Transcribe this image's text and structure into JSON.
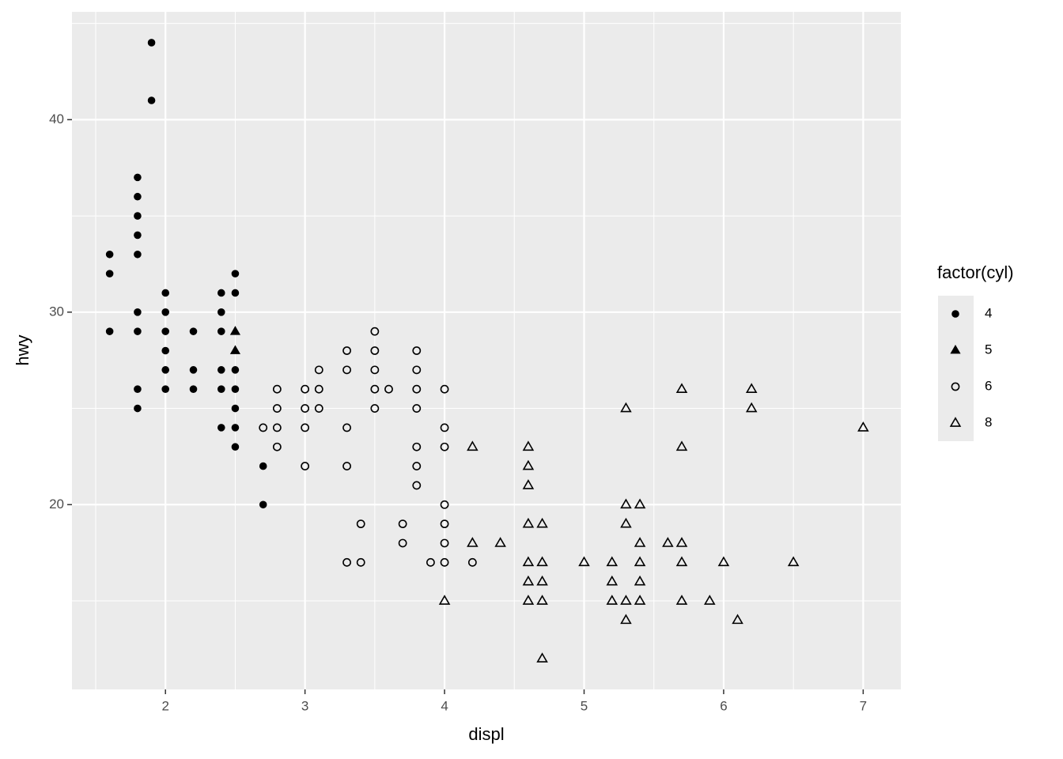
{
  "chart_data": {
    "type": "scatter",
    "x_label": "displ",
    "y_label": "hwy",
    "legend_title": "factor(cyl)",
    "legend_position": "right",
    "xlim": [
      1.33,
      7.27
    ],
    "ylim": [
      10.4,
      45.6
    ],
    "xticks": [
      2,
      3,
      4,
      5,
      6,
      7
    ],
    "yticks": [
      20,
      30,
      40
    ],
    "x_minor_breaks": [
      1.5,
      2.5,
      3.5,
      4.5,
      5.5,
      6.5
    ],
    "y_minor_breaks": [
      15,
      25,
      35,
      45
    ],
    "grid": true,
    "series": [
      {
        "name": "4",
        "color": "#000000",
        "shape": "circle-filled",
        "x": [
          1.6,
          1.6,
          1.6,
          1.8,
          1.8,
          1.8,
          1.8,
          1.8,
          1.8,
          1.8,
          1.8,
          1.8,
          1.9,
          1.9,
          2.0,
          2.0,
          2.0,
          2.0,
          2.0,
          2.0,
          2.2,
          2.2,
          2.2,
          2.4,
          2.4,
          2.4,
          2.4,
          2.4,
          2.4,
          2.5,
          2.5,
          2.5,
          2.5,
          2.5,
          2.5,
          2.5,
          2.7,
          2.7
        ],
        "y": [
          33,
          32,
          29,
          37,
          36,
          35,
          34,
          33,
          30,
          29,
          26,
          25,
          44,
          41,
          31,
          30,
          29,
          28,
          27,
          26,
          29,
          27,
          26,
          31,
          30,
          29,
          27,
          26,
          24,
          32,
          31,
          27,
          26,
          25,
          24,
          23,
          22,
          20
        ]
      },
      {
        "name": "5",
        "color": "#000000",
        "shape": "triangle-filled",
        "x": [
          2.5,
          2.5
        ],
        "y": [
          29,
          28
        ]
      },
      {
        "name": "6",
        "color": "#000000",
        "shape": "circle-open",
        "x": [
          2.7,
          2.8,
          2.8,
          2.8,
          2.8,
          3.0,
          3.0,
          3.0,
          3.0,
          3.1,
          3.1,
          3.1,
          3.3,
          3.3,
          3.3,
          3.3,
          3.3,
          3.4,
          3.4,
          3.5,
          3.5,
          3.5,
          3.5,
          3.5,
          3.6,
          3.7,
          3.7,
          3.8,
          3.8,
          3.8,
          3.8,
          3.8,
          3.8,
          3.8,
          3.9,
          4.0,
          4.0,
          4.0,
          4.0,
          4.0,
          4.0,
          4.0,
          4.2
        ],
        "y": [
          24,
          26,
          25,
          24,
          23,
          26,
          25,
          24,
          22,
          27,
          26,
          25,
          28,
          27,
          24,
          22,
          17,
          19,
          17,
          29,
          28,
          27,
          26,
          25,
          26,
          19,
          18,
          28,
          27,
          26,
          25,
          23,
          22,
          21,
          17,
          26,
          24,
          23,
          20,
          19,
          18,
          17,
          17
        ]
      },
      {
        "name": "8",
        "color": "#000000",
        "shape": "triangle-open",
        "x": [
          4.0,
          4.2,
          4.2,
          4.4,
          4.6,
          4.6,
          4.6,
          4.6,
          4.6,
          4.6,
          4.6,
          4.7,
          4.7,
          4.7,
          4.7,
          4.7,
          5.0,
          5.2,
          5.2,
          5.2,
          5.3,
          5.3,
          5.3,
          5.3,
          5.3,
          5.4,
          5.4,
          5.4,
          5.4,
          5.4,
          5.6,
          5.7,
          5.7,
          5.7,
          5.7,
          5.7,
          5.9,
          6.0,
          6.1,
          6.2,
          6.2,
          6.5,
          7.0
        ],
        "y": [
          15,
          23,
          18,
          18,
          23,
          22,
          21,
          19,
          17,
          16,
          15,
          19,
          17,
          16,
          15,
          12,
          17,
          17,
          16,
          15,
          25,
          20,
          19,
          15,
          14,
          20,
          18,
          17,
          16,
          15,
          18,
          26,
          23,
          18,
          17,
          15,
          15,
          17,
          14,
          26,
          25,
          17,
          24
        ]
      }
    ]
  }
}
